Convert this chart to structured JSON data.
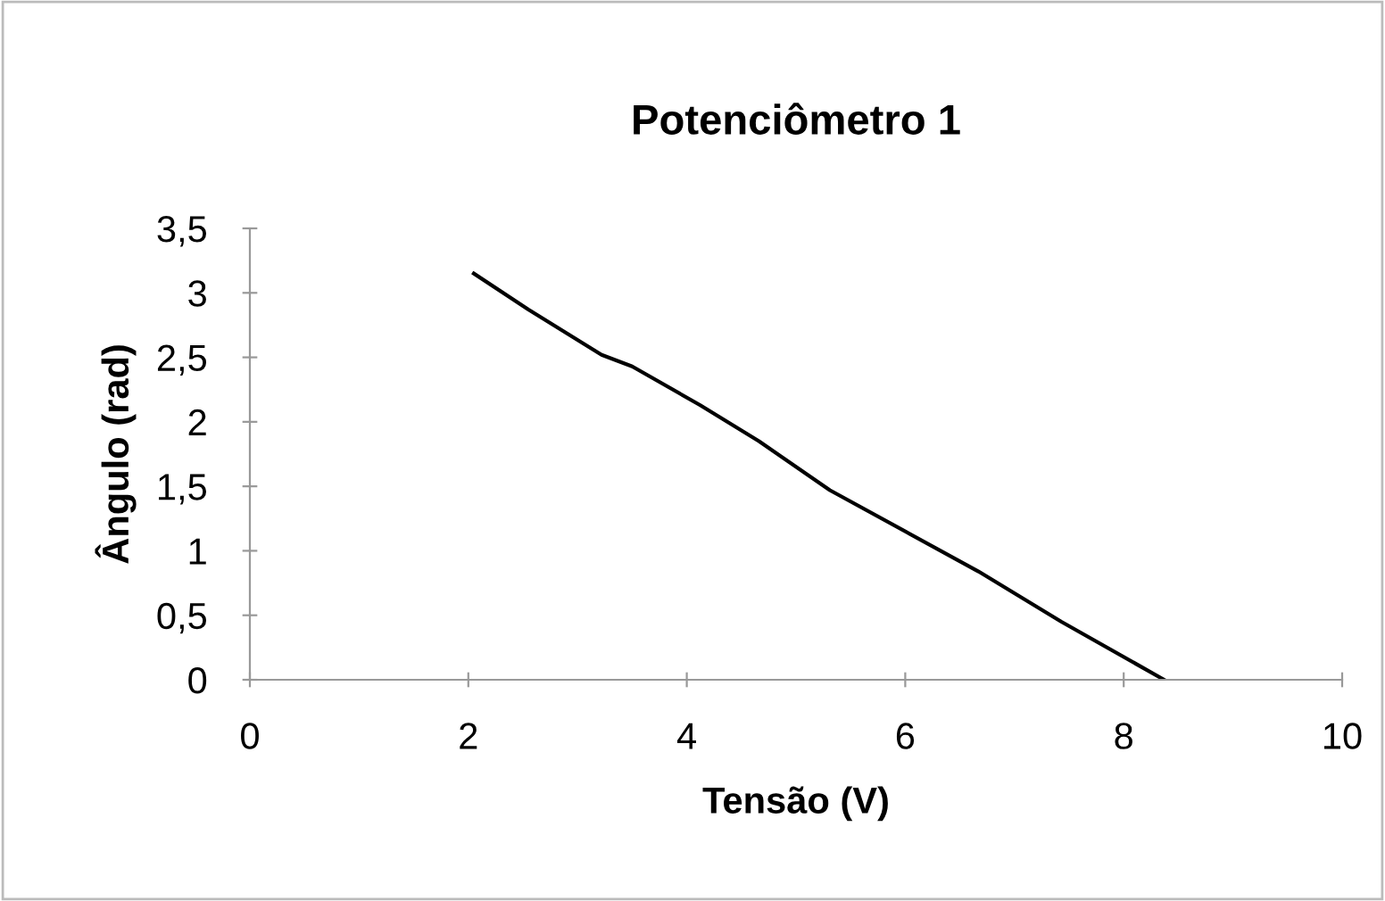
{
  "chart_data": {
    "type": "line",
    "title": "Potenciômetro 1",
    "xlabel": "Tensão (V)",
    "ylabel": "Ângulo (rad)",
    "series": [
      {
        "color": "#000000",
        "x": [
          2.05,
          2.55,
          3.22,
          3.5,
          4.12,
          4.66,
          5.31,
          6.67,
          7.43,
          8.37
        ],
        "values": [
          3.15,
          2.87,
          2.52,
          2.43,
          2.13,
          1.85,
          1.47,
          0.84,
          0.45,
          0
        ]
      }
    ],
    "xlim": [
      0,
      10
    ],
    "xticks": [
      0,
      2,
      4,
      6,
      8,
      10
    ],
    "ylim": [
      0,
      3.5
    ],
    "yticks": [
      0,
      {
        "value": 0.5,
        "label": "0,5"
      },
      1,
      {
        "value": 1.5,
        "label": "1,5"
      },
      2,
      {
        "value": 2.5,
        "label": "2,5"
      },
      3,
      {
        "value": 3.5,
        "label": "3,5"
      }
    ],
    "grid": false,
    "legend": false,
    "marker": "none",
    "line_style": "solid"
  }
}
